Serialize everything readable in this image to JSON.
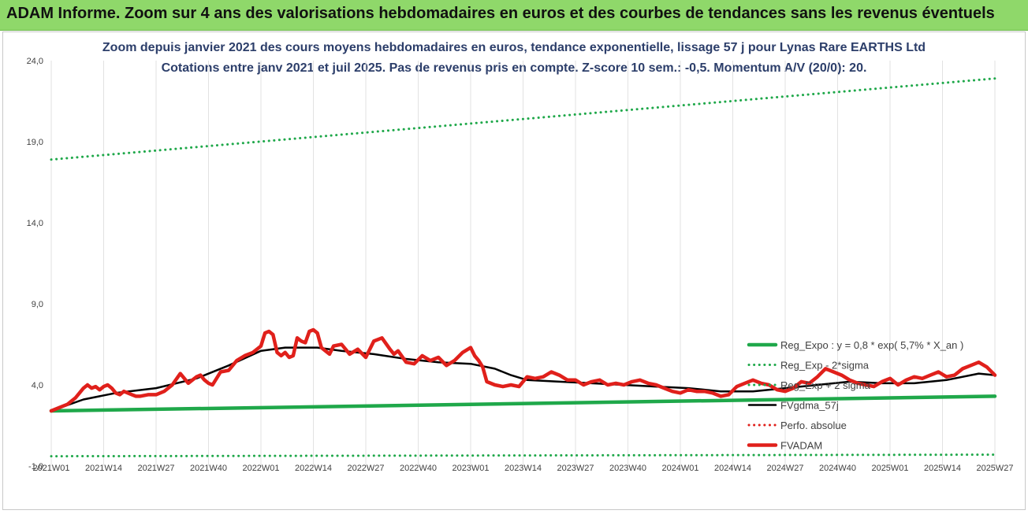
{
  "header": {
    "banner_title": "ADAM Informe. Zoom sur 4 ans des valorisations hebdomadaires en euros et des courbes de tendances sans les revenus éventuels",
    "banner_color": "#8fd86a"
  },
  "chart_data": {
    "type": "line",
    "title": "Zoom depuis janvier 2021 des cours moyens hebdomadaires en euros, tendance exponentielle, lissage 57 j pour Lynas Rare EARTHS Ltd",
    "subtitle": "Cotations entre janv 2021 et juil 2025. Pas de revenus pris en compte. Z-score 10 sem.: -0,5. Momentum A/V (20/0): 20.",
    "xlabel": "",
    "ylabel": "",
    "ylim": [
      -1.0,
      24.0
    ],
    "y_ticks": [
      "-1,0",
      "4,0",
      "9,0",
      "14,0",
      "19,0",
      "24,0"
    ],
    "y_tick_values": [
      -1,
      4,
      9,
      14,
      19,
      24
    ],
    "x_ticks": [
      "2021W01",
      "2021W14",
      "2021W27",
      "2021W40",
      "2022W01",
      "2022W14",
      "2022W27",
      "2022W40",
      "2023W01",
      "2023W14",
      "2023W27",
      "2023W40",
      "2024W01",
      "2024W14",
      "2024W27",
      "2024W40",
      "2025W01",
      "2025W14",
      "2025W27"
    ],
    "x_tick_weeks": [
      0,
      13,
      26,
      39,
      52,
      65,
      78,
      91,
      104,
      117,
      130,
      143,
      156,
      169,
      182,
      195,
      208,
      221,
      234
    ],
    "x_range_weeks": [
      0,
      234
    ],
    "grid": "vertical",
    "legend_position": "right",
    "series": [
      {
        "name": "Reg_Expo : y = 0,8 * exp( 5,7% *  X_an )",
        "color": "#1fa84a",
        "style": "solid-thick",
        "x": [
          0,
          234
        ],
        "values": [
          2.4,
          3.3
        ]
      },
      {
        "name": "Reg_Exp - 2*sigma",
        "color": "#1fa84a",
        "style": "dotted",
        "x": [
          0,
          234
        ],
        "values": [
          -0.4,
          -0.3
        ]
      },
      {
        "name": "Reg_Exp + 2 sigma",
        "color": "#1fa84a",
        "style": "dotted",
        "x": [
          0,
          234
        ],
        "values": [
          17.9,
          22.9
        ]
      },
      {
        "name": "FVgdma_57j",
        "color": "#000000",
        "style": "solid",
        "x": [
          0,
          8,
          16,
          26,
          36,
          44,
          52,
          58,
          66,
          72,
          80,
          88,
          96,
          104,
          110,
          114,
          118,
          126,
          134,
          142,
          150,
          158,
          166,
          174,
          182,
          190,
          198,
          206,
          214,
          222,
          230,
          234
        ],
        "values": [
          2.4,
          3.1,
          3.5,
          3.8,
          4.4,
          5.2,
          6.1,
          6.3,
          6.3,
          6.1,
          5.9,
          5.6,
          5.4,
          5.3,
          5.0,
          4.6,
          4.3,
          4.2,
          4.1,
          4.0,
          3.9,
          3.8,
          3.6,
          3.6,
          3.8,
          4.0,
          4.2,
          4.1,
          4.1,
          4.3,
          4.7,
          4.6
        ]
      },
      {
        "name": "Perfo. absolue",
        "color": "#e0201b",
        "style": "dotted",
        "x": [],
        "values": []
      },
      {
        "name": "FVADAM",
        "color": "#e0201b",
        "style": "solid-thick",
        "x": [
          0,
          2,
          4,
          6,
          8,
          9,
          10,
          11,
          12,
          13,
          14,
          15,
          16,
          17,
          18,
          19,
          20,
          21,
          22,
          24,
          26,
          28,
          30,
          32,
          34,
          36,
          37,
          38,
          39,
          40,
          42,
          44,
          46,
          48,
          50,
          52,
          53,
          54,
          55,
          56,
          57,
          58,
          59,
          60,
          61,
          62,
          63,
          64,
          65,
          66,
          67,
          68,
          69,
          70,
          72,
          74,
          76,
          78,
          80,
          82,
          84,
          85,
          86,
          88,
          90,
          92,
          94,
          96,
          98,
          100,
          102,
          104,
          105,
          106,
          107,
          108,
          110,
          112,
          114,
          116,
          118,
          120,
          122,
          124,
          126,
          128,
          130,
          132,
          134,
          136,
          138,
          140,
          142,
          144,
          146,
          148,
          150,
          152,
          154,
          156,
          158,
          160,
          162,
          164,
          166,
          168,
          170,
          172,
          174,
          176,
          178,
          180,
          182,
          184,
          186,
          188,
          190,
          192,
          194,
          196,
          198,
          200,
          202,
          204,
          206,
          208,
          210,
          212,
          214,
          216,
          218,
          220,
          222,
          224,
          226,
          228,
          230,
          232,
          234
        ],
        "values": [
          2.4,
          2.6,
          2.8,
          3.2,
          3.8,
          4.0,
          3.8,
          3.9,
          3.7,
          3.9,
          4.0,
          3.8,
          3.5,
          3.4,
          3.6,
          3.5,
          3.4,
          3.3,
          3.3,
          3.4,
          3.4,
          3.6,
          4.0,
          4.7,
          4.1,
          4.5,
          4.6,
          4.3,
          4.1,
          4.0,
          4.8,
          4.9,
          5.5,
          5.8,
          6.0,
          6.4,
          7.2,
          7.3,
          7.1,
          6.0,
          5.8,
          6.0,
          5.7,
          5.8,
          6.9,
          6.7,
          6.6,
          7.3,
          7.4,
          7.2,
          6.3,
          6.1,
          5.9,
          6.4,
          6.5,
          5.9,
          6.2,
          5.7,
          6.7,
          6.9,
          6.2,
          5.9,
          6.1,
          5.4,
          5.3,
          5.8,
          5.5,
          5.7,
          5.2,
          5.5,
          6.0,
          6.3,
          5.8,
          5.5,
          5.1,
          4.2,
          4.0,
          3.9,
          4.0,
          3.9,
          4.5,
          4.4,
          4.5,
          4.8,
          4.6,
          4.3,
          4.3,
          4.0,
          4.2,
          4.3,
          4.0,
          4.1,
          4.0,
          4.2,
          4.3,
          4.1,
          4.0,
          3.8,
          3.6,
          3.5,
          3.7,
          3.6,
          3.6,
          3.5,
          3.3,
          3.4,
          3.9,
          4.1,
          4.3,
          4.1,
          4.0,
          3.7,
          3.6,
          3.8,
          4.2,
          4.1,
          4.5,
          5.0,
          4.8,
          4.6,
          4.3,
          4.1,
          4.0,
          3.9,
          4.2,
          4.4,
          4.0,
          4.3,
          4.5,
          4.4,
          4.6,
          4.8,
          4.5,
          4.6,
          5.0,
          5.2,
          5.4,
          5.1,
          4.6
        ]
      }
    ]
  }
}
